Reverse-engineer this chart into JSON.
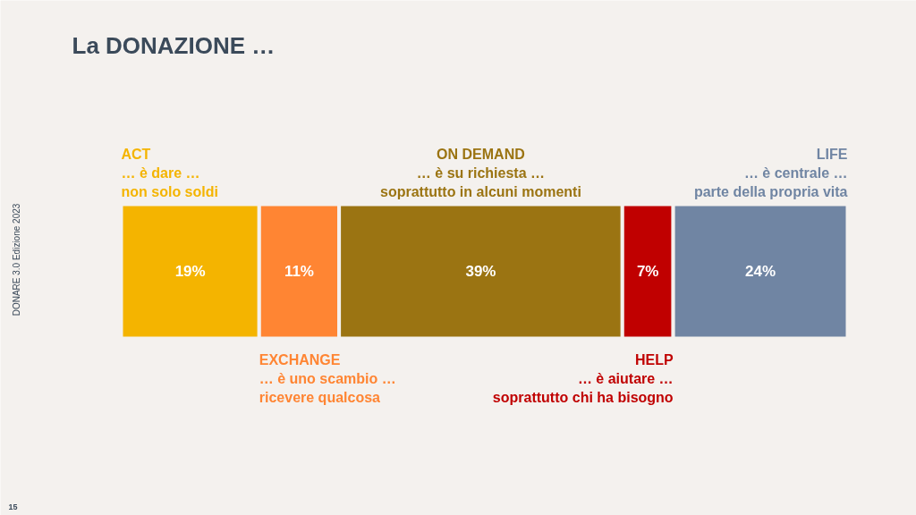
{
  "chart_data": {
    "type": "bar",
    "orientation": "horizontal",
    "stacked": true,
    "title": "La DONAZIONE …",
    "categories": [
      null
    ],
    "series": [
      {
        "name": "ACT",
        "color": "#f4b400",
        "values": [
          19
        ],
        "value_labels": [
          "19%"
        ]
      },
      {
        "name": "EXCHANGE",
        "color": "#ff8533",
        "values": [
          11
        ],
        "value_labels": [
          "11%"
        ]
      },
      {
        "name": "ON DEMAND",
        "color": "#9b7412",
        "values": [
          39
        ],
        "value_labels": [
          "39%"
        ]
      },
      {
        "name": "HELP",
        "color": "#c00000",
        "values": [
          7
        ],
        "value_labels": [
          "7%"
        ]
      },
      {
        "name": "LIFE",
        "color": "#7085a3",
        "values": [
          24
        ],
        "value_labels": [
          "24%"
        ]
      }
    ],
    "annotations": [
      "… è dare …\nnon solo soldi",
      "… è uno scambio …\nricevere qualcosa",
      "… è su richiesta …\nsoprattutto in alcuni momenti",
      "… è aiutare …\nsoprattutto chi ha bisogno",
      "… è centrale …\nparte della propria vita",
      "DONARE 3.0 Edizione 2023",
      "15"
    ],
    "grid": false
  }
}
